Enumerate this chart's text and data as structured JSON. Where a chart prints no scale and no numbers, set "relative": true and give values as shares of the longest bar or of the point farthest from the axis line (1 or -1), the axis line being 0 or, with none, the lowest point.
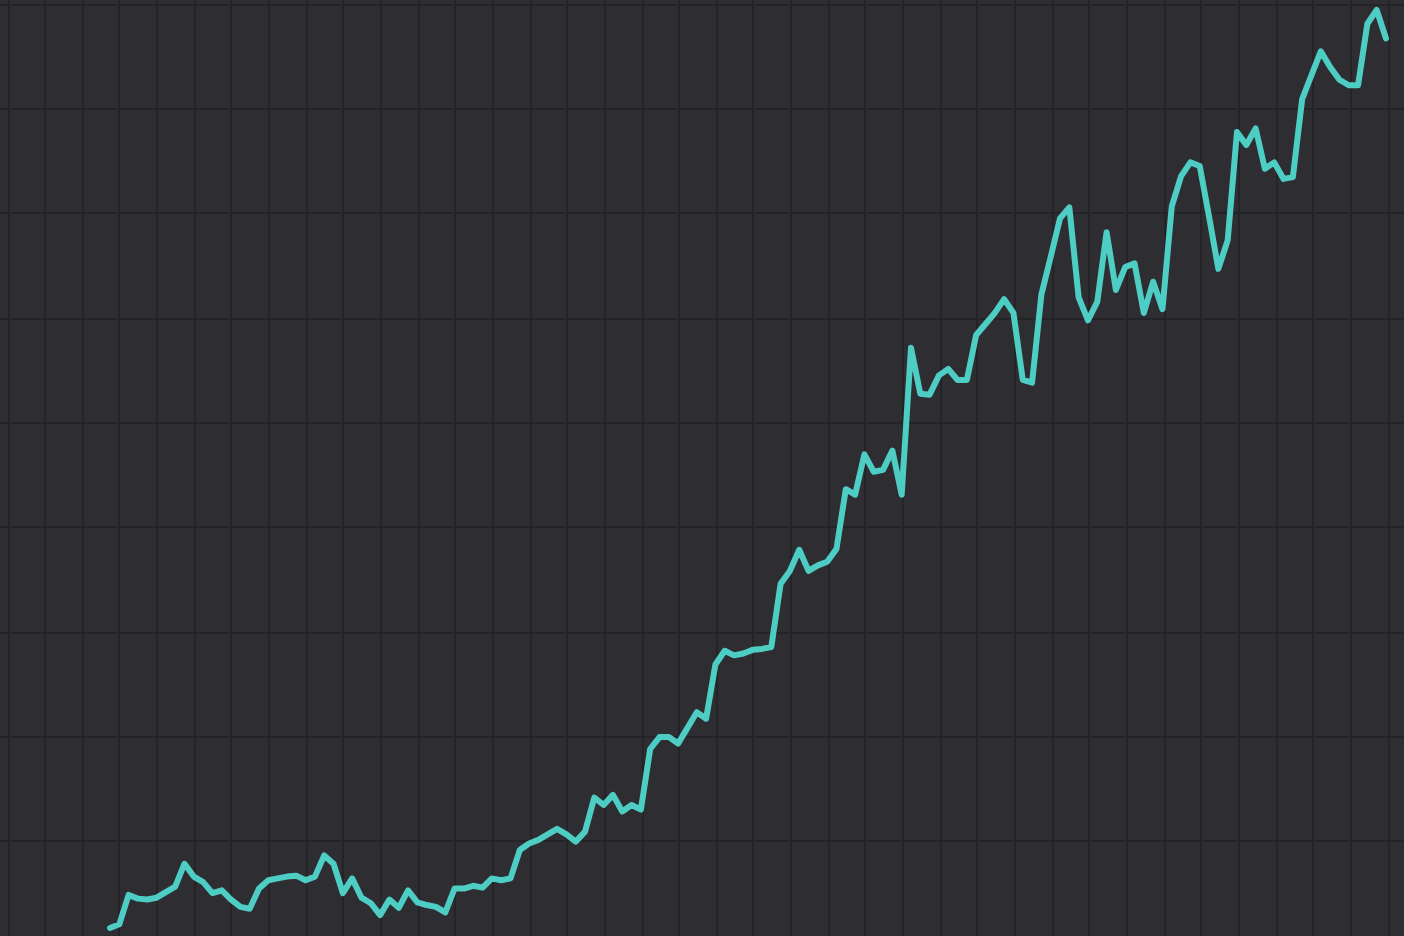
{
  "chart_data": {
    "type": "line",
    "relative": true,
    "grid": true,
    "categories": [
      null,
      null,
      null,
      null,
      null,
      null,
      null,
      null,
      null,
      null,
      null,
      null,
      null,
      null,
      null,
      null,
      null,
      null,
      null,
      null,
      null,
      null,
      null,
      null,
      null,
      null,
      null,
      null,
      null,
      null,
      null,
      null,
      null,
      null,
      null,
      null,
      null,
      null,
      null,
      null,
      null,
      null,
      null,
      null,
      null,
      null,
      null,
      null,
      null,
      null,
      null,
      null,
      null,
      null,
      null,
      null,
      null,
      null,
      null,
      null,
      null,
      null,
      null,
      null,
      null,
      null,
      null,
      null,
      null,
      null,
      null,
      null,
      null,
      null,
      null,
      null,
      null,
      null,
      null,
      null,
      null,
      null,
      null,
      null,
      null,
      null,
      null,
      null,
      null,
      null,
      null,
      null,
      null,
      null,
      null,
      null,
      null,
      null,
      null,
      null,
      null,
      null,
      null,
      null,
      null,
      null,
      null,
      null,
      null,
      null,
      null,
      null,
      null,
      null,
      null,
      null,
      null,
      null,
      null,
      null,
      null,
      null,
      null,
      null,
      null,
      null,
      null,
      null,
      null,
      null,
      null,
      null,
      null,
      null,
      null,
      null,
      null,
      null
    ],
    "series": [
      {
        "color": "#4ecdc4",
        "values": [
          0,
          0.004,
          0.036,
          0.032,
          0.031,
          0.033,
          0.039,
          0.045,
          0.07,
          0.056,
          0.05,
          0.038,
          0.041,
          0.031,
          0.023,
          0.021,
          0.043,
          0.052,
          0.054,
          0.056,
          0.057,
          0.052,
          0.056,
          0.079,
          0.07,
          0.038,
          0.054,
          0.033,
          0.027,
          0.014,
          0.031,
          0.022,
          0.041,
          0.028,
          0.025,
          0.023,
          0.017,
          0.043,
          0.043,
          0.046,
          0.044,
          0.054,
          0.052,
          0.054,
          0.085,
          0.092,
          0.096,
          0.102,
          0.108,
          0.102,
          0.094,
          0.105,
          0.142,
          0.134,
          0.145,
          0.127,
          0.134,
          0.129,
          0.195,
          0.208,
          0.208,
          0.201,
          0.218,
          0.235,
          0.228,
          0.287,
          0.302,
          0.297,
          0.299,
          0.303,
          0.304,
          0.306,
          0.375,
          0.389,
          0.412,
          0.389,
          0.395,
          0.399,
          0.413,
          0.478,
          0.472,
          0.516,
          0.497,
          0.499,
          0.52,
          0.472,
          0.632,
          0.582,
          0.581,
          0.602,
          0.609,
          0.597,
          0.597,
          0.646,
          0.658,
          0.67,
          0.685,
          0.67,
          0.597,
          0.594,
          0.69,
          0.731,
          0.773,
          0.785,
          0.687,
          0.662,
          0.682,
          0.758,
          0.695,
          0.72,
          0.724,
          0.67,
          0.704,
          0.674,
          0.786,
          0.819,
          0.834,
          0.83,
          0.775,
          0.718,
          0.749,
          0.867,
          0.853,
          0.871,
          0.827,
          0.834,
          0.816,
          0.818,
          0.903,
          0.929,
          0.955,
          0.938,
          0.924,
          0.918,
          0.918,
          0.985,
          1,
          0.969
        ]
      }
    ]
  }
}
